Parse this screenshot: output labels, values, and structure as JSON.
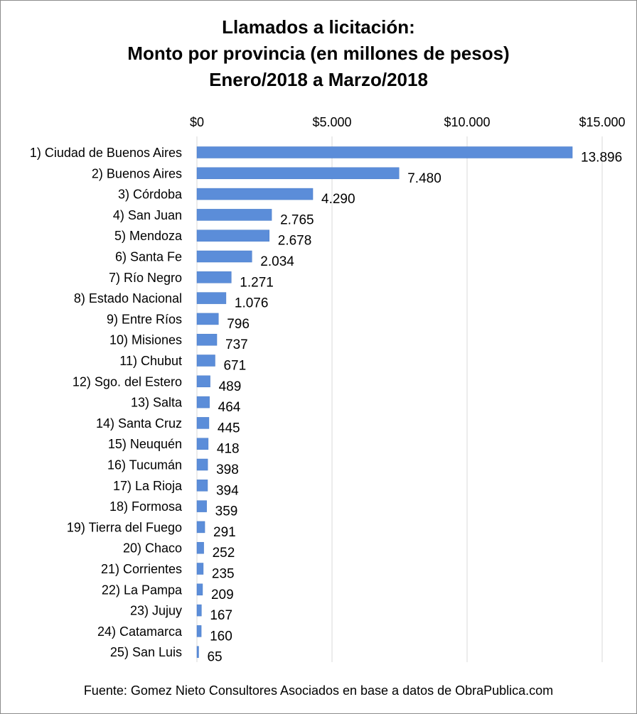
{
  "chart_data": {
    "type": "bar",
    "orientation": "horizontal",
    "title_lines": [
      "Llamados a licitación:",
      "Monto por provincia (en millones de pesos)",
      "Enero/2018 a Marzo/2018"
    ],
    "categories": [
      "1) Ciudad de Buenos Aires",
      "2) Buenos Aires",
      "3) Córdoba",
      "4) San Juan",
      "5) Mendoza",
      "6) Santa Fe",
      "7) Río Negro",
      "8) Estado Nacional",
      "9) Entre Ríos",
      "10) Misiones",
      "11) Chubut",
      "12) Sgo. del Estero",
      "13) Salta",
      "14) Santa Cruz",
      "15) Neuquén",
      "16) Tucumán",
      "17) La Rioja",
      "18) Formosa",
      "19) Tierra del Fuego",
      "20) Chaco",
      "21) Corrientes",
      "22) La Pampa",
      "23) Jujuy",
      "24) Catamarca",
      "25) San Luis"
    ],
    "values": [
      13896,
      7480,
      4290,
      2765,
      2678,
      2034,
      1271,
      1076,
      796,
      737,
      671,
      489,
      464,
      445,
      418,
      398,
      394,
      359,
      291,
      252,
      235,
      209,
      167,
      160,
      65
    ],
    "value_labels": [
      "13.896",
      "7.480",
      "4.290",
      "2.765",
      "2.678",
      "2.034",
      "1.271",
      "1.076",
      "796",
      "737",
      "671",
      "489",
      "464",
      "445",
      "418",
      "398",
      "394",
      "359",
      "291",
      "252",
      "235",
      "209",
      "167",
      "160",
      "65"
    ],
    "xlim": [
      0,
      15000
    ],
    "x_ticks": [
      0,
      5000,
      10000,
      15000
    ],
    "x_tick_labels": [
      "$0",
      "$5.000",
      "$10.000",
      "$15.000"
    ],
    "x_axis_position": "top",
    "grid": true,
    "legend": "none",
    "bar_color": "#5B8DD9",
    "source": "Fuente: Gomez Nieto Consultores Asociados en base a datos de ObraPublica.com"
  }
}
